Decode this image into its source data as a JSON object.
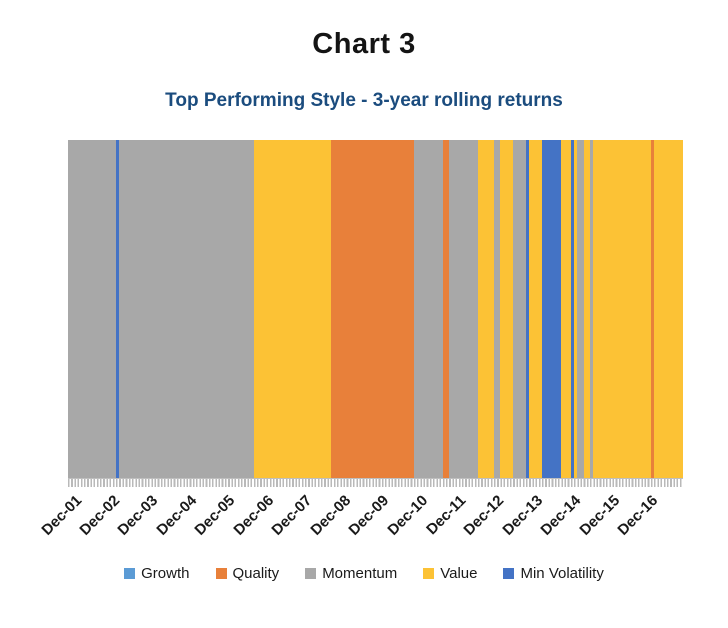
{
  "chart_data": {
    "type": "bar",
    "subtype": "monthly-top-style-timeline",
    "title": "Chart 3",
    "subtitle": "Top Performing Style - 3-year rolling returns",
    "months_total": 192,
    "first_tick_month_index": 1,
    "months_per_tick": 12,
    "x_tick_labels": [
      "Dec-01",
      "Dec-02",
      "Dec-03",
      "Dec-04",
      "Dec-05",
      "Dec-06",
      "Dec-07",
      "Dec-08",
      "Dec-09",
      "Dec-10",
      "Dec-11",
      "Dec-12",
      "Dec-13",
      "Dec-14",
      "Dec-15",
      "Dec-16"
    ],
    "legend": [
      {
        "name": "Growth",
        "color": "#5B9BD5"
      },
      {
        "name": "Quality",
        "color": "#E8803A"
      },
      {
        "name": "Momentum",
        "color": "#A8A8A8"
      },
      {
        "name": "Value",
        "color": "#FCC235"
      },
      {
        "name": "Min Volatility",
        "color": "#4473C5"
      }
    ],
    "style_colors": {
      "Growth": "#5B9BD5",
      "Quality": "#E8803A",
      "Momentum": "#A8A8A8",
      "Value": "#FCC235",
      "Min Volatility": "#4473C5"
    },
    "segments": [
      {
        "style": "Momentum",
        "months": 15
      },
      {
        "style": "Min Volatility",
        "months": 1
      },
      {
        "style": "Momentum",
        "months": 42
      },
      {
        "style": "Value",
        "months": 24
      },
      {
        "style": "Quality",
        "months": 26
      },
      {
        "style": "Momentum",
        "months": 9
      },
      {
        "style": "Quality",
        "months": 2
      },
      {
        "style": "Momentum",
        "months": 9
      },
      {
        "style": "Value",
        "months": 5
      },
      {
        "style": "Momentum",
        "months": 2
      },
      {
        "style": "Value",
        "months": 4
      },
      {
        "style": "Momentum",
        "months": 4
      },
      {
        "style": "Min Volatility",
        "months": 1
      },
      {
        "style": "Value",
        "months": 4
      },
      {
        "style": "Min Volatility",
        "months": 6
      },
      {
        "style": "Value",
        "months": 3
      },
      {
        "style": "Min Volatility",
        "months": 1
      },
      {
        "style": "Value",
        "months": 1
      },
      {
        "style": "Momentum",
        "months": 2
      },
      {
        "style": "Value",
        "months": 2
      },
      {
        "style": "Momentum",
        "months": 1
      },
      {
        "style": "Value",
        "months": 18
      },
      {
        "style": "Quality",
        "months": 1
      },
      {
        "style": "Value",
        "months": 9
      }
    ]
  }
}
